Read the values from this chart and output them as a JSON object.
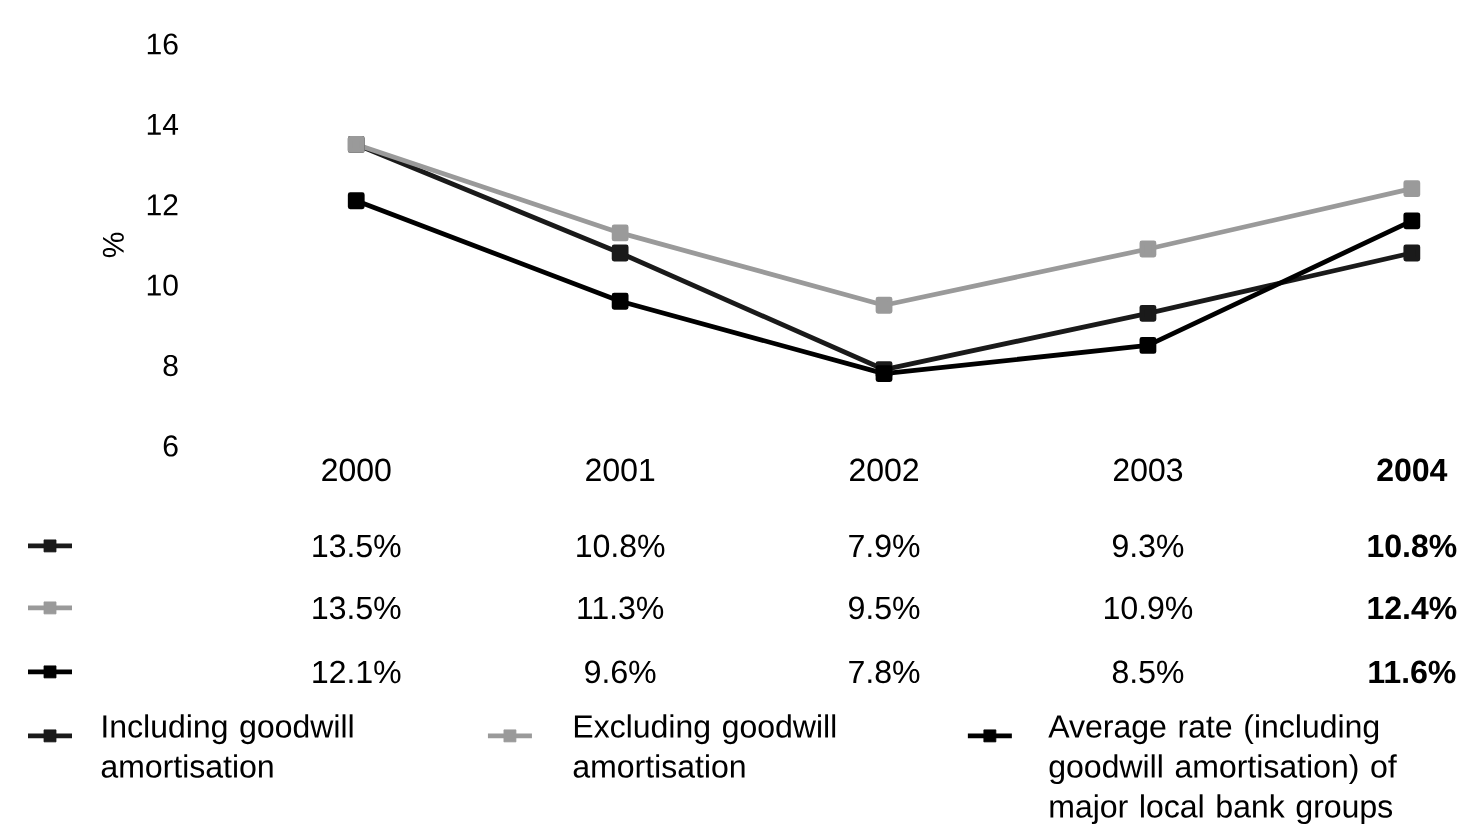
{
  "chart_data": {
    "type": "line",
    "ylabel": "%",
    "categories": [
      "2000",
      "2001",
      "2002",
      "2003",
      "2004"
    ],
    "ylim": [
      6,
      16
    ],
    "yticks": [
      6,
      8,
      10,
      12,
      14,
      16
    ],
    "grid": false,
    "legend": "bottom",
    "marker": "square",
    "line_style": "solid",
    "data_labels": true,
    "series": [
      {
        "name": "Including goodwill amortisation",
        "color": "#1a1a1a",
        "values": [
          13.5,
          10.8,
          7.9,
          9.3,
          10.8
        ],
        "value_labels": [
          "13.5%",
          "10.8%",
          "7.9%",
          "9.3%",
          "10.8%"
        ]
      },
      {
        "name": "Excluding goodwill amortisation",
        "color": "#9a9a9a",
        "values": [
          13.5,
          11.3,
          9.5,
          10.9,
          12.4
        ],
        "value_labels": [
          "13.5%",
          "11.3%",
          "9.5%",
          "10.9%",
          "12.4%"
        ]
      },
      {
        "name": "Average rate (including goodwill amortisation) of major local bank groups",
        "color": "#000000",
        "values": [
          12.1,
          9.6,
          7.8,
          8.5,
          11.6
        ],
        "value_labels": [
          "12.1%",
          "9.6%",
          "7.8%",
          "8.5%",
          "11.6%"
        ]
      }
    ]
  }
}
